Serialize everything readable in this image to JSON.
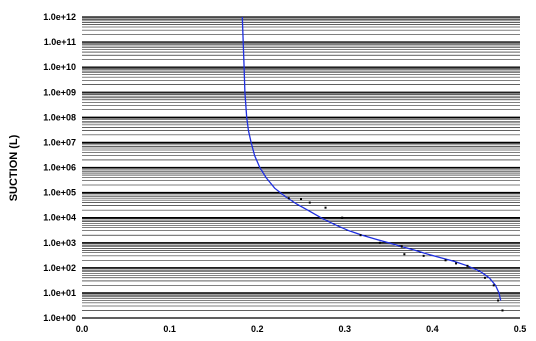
{
  "chart_data": {
    "type": "scatter",
    "title": "",
    "xlabel": "",
    "ylabel": "SUCTION (L)",
    "y_scale": "log",
    "xlim": [
      0.0,
      0.5
    ],
    "ylim": [
      1,
      1000000000000
    ],
    "grid": "horizontal log minor lines",
    "x_ticks": [
      "0.0",
      "0.1",
      "0.2",
      "0.3",
      "0.4",
      "0.5"
    ],
    "y_ticks": [
      "1.0e+00",
      "1.0e+01",
      "1.0e+02",
      "1.0e+03",
      "1.0e+04",
      "1.0e+05",
      "1.0e+06",
      "1.0e+07",
      "1.0e+08",
      "1.0e+09",
      "1.0e+10",
      "1.0e+11",
      "1.0e+12"
    ],
    "colors": {
      "fit_line": "#1f2fe0",
      "points": "#000000",
      "grid": "#000000",
      "background": "#ffffff"
    },
    "series": [
      {
        "kind": "line",
        "x": [
          0.183,
          0.184,
          0.185,
          0.186,
          0.188,
          0.19,
          0.193,
          0.197,
          0.203,
          0.21,
          0.22,
          0.232,
          0.245,
          0.26,
          0.275,
          0.29,
          0.305,
          0.32,
          0.335,
          0.35,
          0.365,
          0.38,
          0.395,
          0.41,
          0.425,
          0.44,
          0.455,
          0.465,
          0.472,
          0.476,
          0.478
        ],
        "y": [
          1000000000000.0,
          100000000000.0,
          10000000000.0,
          1000000000.0,
          100000000.0,
          30000000.0,
          10000000.0,
          3000000.0,
          1000000.0,
          400000.0,
          150000.0,
          70000.0,
          35000.0,
          18000.0,
          9000.0,
          5000.0,
          3000.0,
          2000.0,
          1400.0,
          1000.0,
          700.0,
          500.0,
          350.0,
          250.0,
          180.0,
          120.0,
          70,
          40,
          20,
          10,
          5
        ]
      },
      {
        "kind": "points",
        "x": [
          0.236,
          0.25,
          0.26,
          0.278,
          0.297,
          0.318,
          0.34,
          0.365,
          0.368,
          0.39,
          0.415,
          0.427,
          0.44,
          0.46,
          0.47,
          0.475,
          0.48
        ],
        "y": [
          60000.0,
          55000.0,
          40000.0,
          25000.0,
          10000.0,
          2000.0,
          1000.0,
          700.0,
          350.0,
          300.0,
          200.0,
          150.0,
          120.0,
          40,
          20,
          5,
          2
        ]
      }
    ]
  }
}
